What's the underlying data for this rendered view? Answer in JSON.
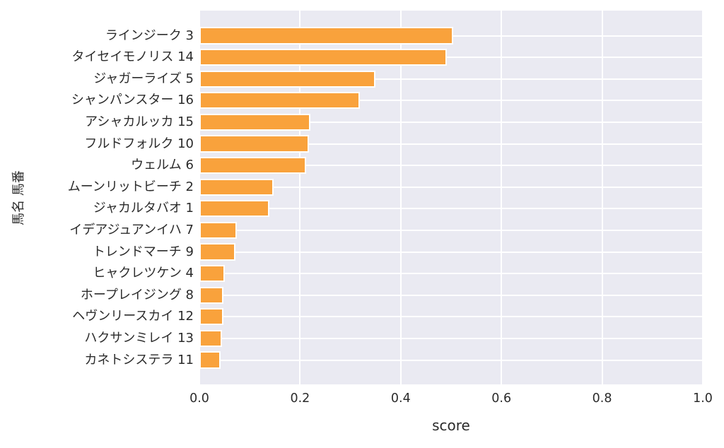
{
  "chart_data": {
    "type": "bar",
    "orientation": "horizontal",
    "xlabel": "score",
    "ylabel": "馬名 馬番",
    "categories": [
      "ラインジーク 3",
      "タイセイモノリス 14",
      "ジャガーライズ 5",
      "シャンパンスター 16",
      "アシャカルッカ 15",
      "フルドフォルク 10",
      "ウェルム 6",
      "ムーンリットビーチ 2",
      "ジャカルタバオ 1",
      "イデアジュアンイハ 7",
      "トレンドマーチ 9",
      "ヒャクレツケン 4",
      "ホープレイジング 8",
      "ヘヴンリースカイ 12",
      "ハクサンミレイ 13",
      "カネトシステラ 11"
    ],
    "values": [
      0.504,
      0.492,
      0.35,
      0.319,
      0.221,
      0.218,
      0.212,
      0.148,
      0.139,
      0.075,
      0.072,
      0.05,
      0.048,
      0.048,
      0.045,
      0.042
    ],
    "xlim": [
      0.0,
      1.0
    ],
    "xticks": [
      "0.0",
      "0.2",
      "0.4",
      "0.6",
      "0.8",
      "1.0"
    ],
    "xtick_values": [
      0.0,
      0.2,
      0.4,
      0.6,
      0.8,
      1.0
    ],
    "grid": true,
    "legend": "none",
    "colors": {
      "bar": "#F9A23C",
      "bar_edge": "#FFFFFF",
      "plot_bg": "#EAEAF2",
      "grid": "#FFFFFF",
      "figure_bg": "#FFFFFF",
      "text": "#2B2B2B"
    }
  }
}
